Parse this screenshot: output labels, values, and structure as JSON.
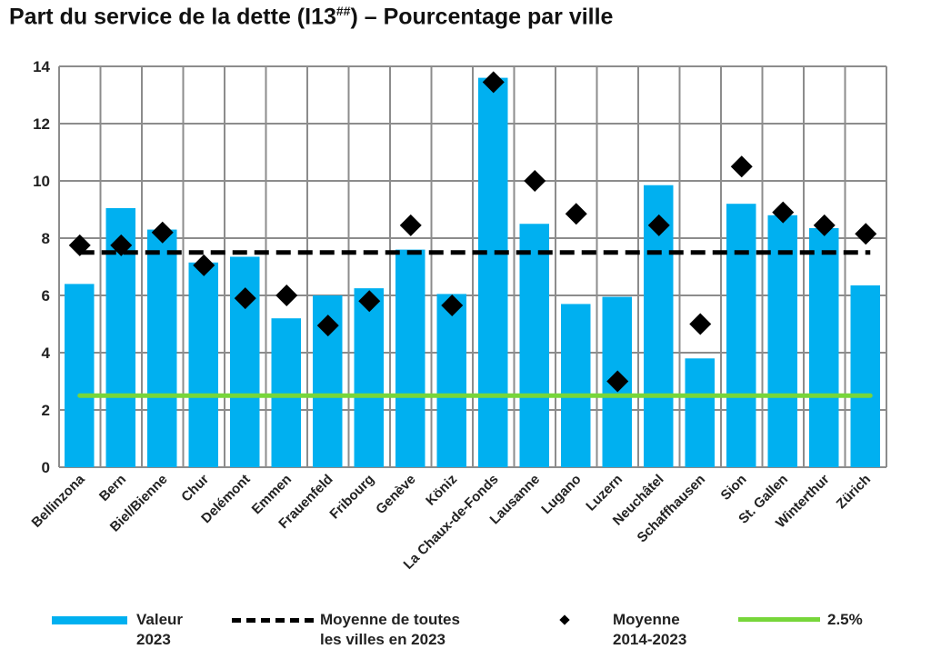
{
  "title_main": "Part du service de la dette (I13",
  "title_sup": "##",
  "title_end": ") – Pourcentage par ville",
  "chart_data": {
    "type": "bar",
    "title": "Part du service de la dette (I13##) – Pourcentage par ville",
    "categories": [
      "Bellinzona",
      "Bern",
      "Biel/Bienne",
      "Chur",
      "Delémont",
      "Emmen",
      "Frauenfeld",
      "Fribourg",
      "Genève",
      "Köniz",
      "La Chaux-de-Fonds",
      "Lausanne",
      "Lugano",
      "Luzern",
      "Neuchâtel",
      "Schaffhausen",
      "Sion",
      "St. Gallen",
      "Winterthur",
      "Zürich"
    ],
    "series": [
      {
        "name": "Valeur 2023",
        "type": "bar",
        "color": "#00b0f0",
        "values": [
          6.4,
          9.05,
          8.3,
          7.15,
          7.35,
          5.2,
          6.0,
          6.25,
          7.6,
          6.05,
          13.6,
          8.5,
          5.7,
          5.95,
          9.85,
          3.8,
          9.2,
          8.8,
          8.35,
          6.35
        ]
      },
      {
        "name": "Moyenne 2014-2023",
        "type": "scatter",
        "color": "#000000",
        "values": [
          7.75,
          7.75,
          8.2,
          7.05,
          5.9,
          6.0,
          4.95,
          5.8,
          8.45,
          5.65,
          13.45,
          10.0,
          8.85,
          3.0,
          8.45,
          5.0,
          10.5,
          8.9,
          8.45,
          8.15
        ]
      },
      {
        "name": "Moyenne de toutes les villes en 2023",
        "type": "hline",
        "color": "#000000",
        "value": 7.5
      },
      {
        "name": "2.5%",
        "type": "hline",
        "color": "#77d63a",
        "value": 2.5
      }
    ],
    "ylim": [
      0,
      14
    ],
    "yticks": [
      "0",
      "2",
      "4",
      "6",
      "8",
      "10",
      "12",
      "14"
    ],
    "grid": true,
    "legend_position": "bottom"
  },
  "legend": {
    "bar_l1": "Valeur",
    "bar_l2": "2023",
    "avg_l1": "Moyenne de toutes",
    "avg_l2": "les villes en 2023",
    "mean_l1": "Moyenne",
    "mean_l2": "2014-2023",
    "green": "2.5%"
  }
}
